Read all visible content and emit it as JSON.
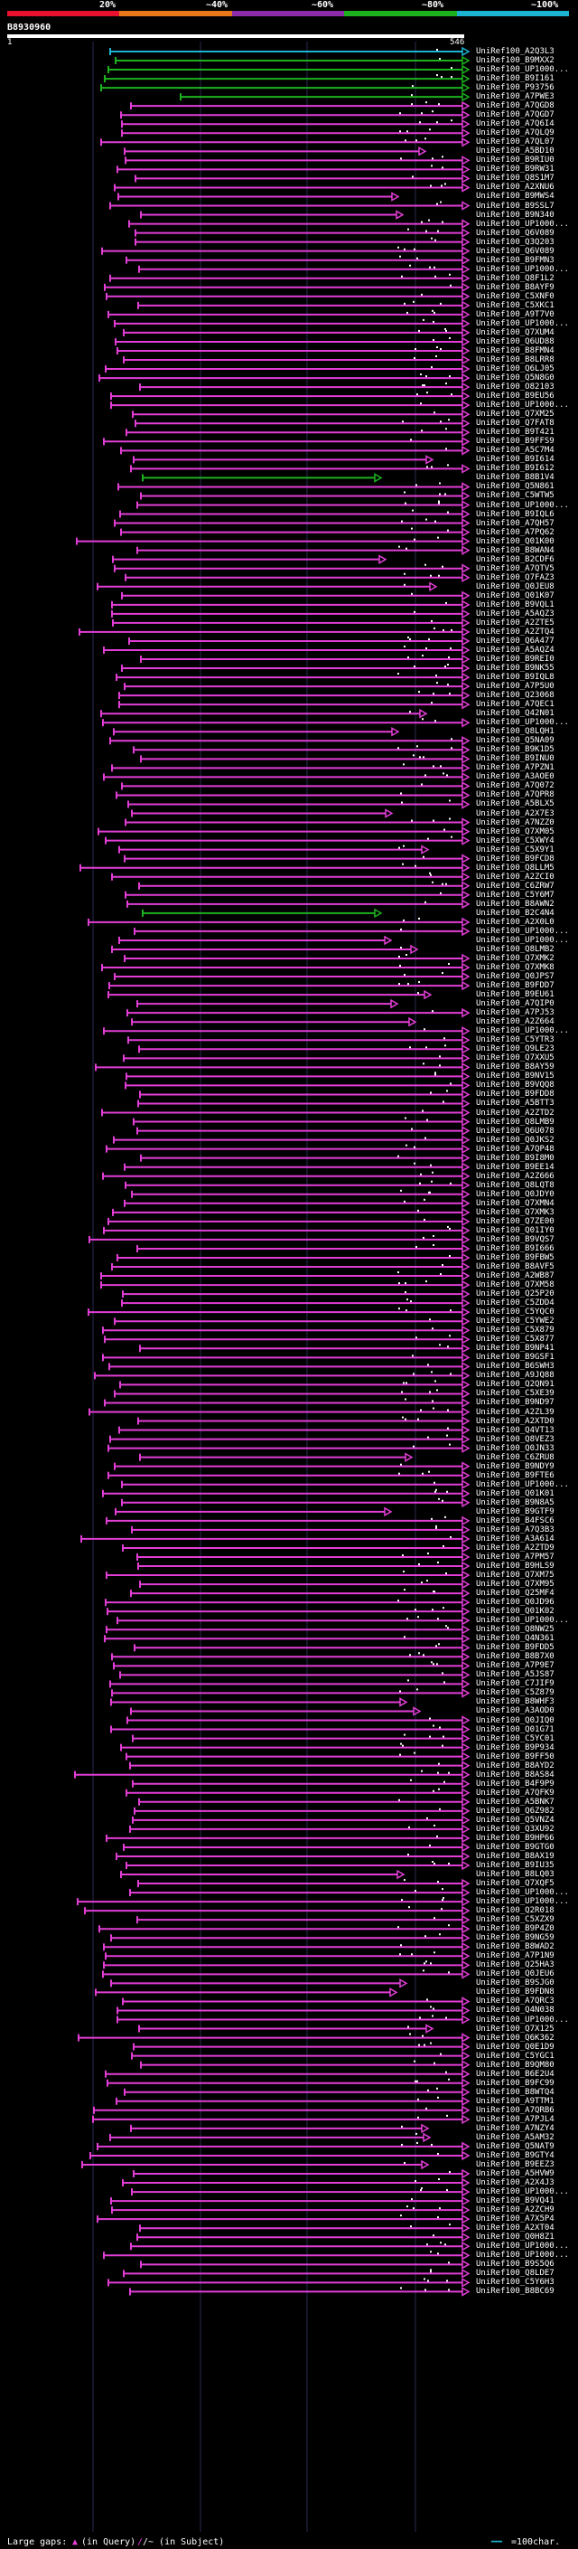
{
  "scale": {
    "labels": [
      "20%",
      "~40%",
      "~60%",
      "~80%",
      "~100%"
    ],
    "colors": [
      "#e8112d",
      "#e8791a",
      "#8d2ca8",
      "#1db11f",
      "#1cb4d0"
    ]
  },
  "query": {
    "id": "B8930960",
    "start": "1",
    "end": "546"
  },
  "hits": [
    "UniRef100_A2Q3L3",
    "UniRef100_B9MXX2",
    "UniRef100_UP1000...",
    "UniRef100_B9I161",
    "UniRef100_P93756",
    "UniRef100_A7PWE3",
    "UniRef100_A7QGD8",
    "UniRef100_A7QGD7",
    "UniRef100_A7Q6I4",
    "UniRef100_A7QLQ9",
    "UniRef100_A7QL07",
    "UniRef100_A5BD10",
    "UniRef100_B9RIU0",
    "UniRef100_B9RW31",
    "UniRef100_Q8S1M7",
    "UniRef100_A2XNU6",
    "UniRef100_B9MWS4",
    "UniRef100_B9SSL7",
    "UniRef100_B9N340",
    "UniRef100_UP1000...",
    "UniRef100_Q6V089",
    "UniRef100_Q3Q203",
    "UniRef100_Q6V089",
    "UniRef100_B9FMN3",
    "UniRef100_UP1000...",
    "UniRef100_Q8F1L2",
    "UniRef100_B8AYF9",
    "UniRef100_C5XNF0",
    "UniRef100_C5XKC1",
    "UniRef100_A9T7V0",
    "UniRef100_UP1000...",
    "UniRef100_Q7XUM4",
    "UniRef100_Q6UD88",
    "UniRef100_B8FMN4",
    "UniRef100_B8LRR8",
    "UniRef100_Q6LJ05",
    "UniRef100_Q5N8G0",
    "UniRef100_O82103",
    "UniRef100_B9EU56",
    "UniRef100_UP1000...",
    "UniRef100_Q7XM25",
    "UniRef100_Q7FAT8",
    "UniRef100_B9T421",
    "UniRef100_B9FFS9",
    "UniRef100_A5C7M4",
    "UniRef100_B9I614",
    "UniRef100_B9I612",
    "UniRef100_B8B1V4",
    "UniRef100_Q5N861",
    "UniRef100_C5WTW5",
    "UniRef100_UP1000...",
    "UniRef100_B9IQL6",
    "UniRef100_A7QH57",
    "UniRef100_A7PQ62",
    "UniRef100_Q01K00",
    "UniRef100_B8WAN4",
    "UniRef100_B2CDF6",
    "UniRef100_A7QTV5",
    "UniRef100_Q7FAZ3",
    "UniRef100_Q0JEU8",
    "UniRef100_Q01K07",
    "UniRef100_B9VQL1",
    "UniRef100_A5AQZ3",
    "UniRef100_A2ZTE5",
    "UniRef100_A2ZTQ4",
    "UniRef100_Q6A477",
    "UniRef100_A5AQZ4",
    "UniRef100_B9REI0",
    "UniRef100_B9NK55",
    "UniRef100_B9IQL8",
    "UniRef100_A7P5U0",
    "UniRef100_Q23068",
    "UniRef100_A7QEC1",
    "UniRef100_Q42N01",
    "UniRef100_UP1000...",
    "UniRef100_Q8LQH1",
    "UniRef100_Q5NA09",
    "UniRef100_B9K1D5",
    "UniRef100_B9INU0",
    "UniRef100_A7PZN1",
    "UniRef100_A3AOE0",
    "UniRef100_A7Q072",
    "UniRef100_A7QPR8",
    "UniRef100_A5BLX5",
    "UniRef100_A2X7E3",
    "UniRef100_A7NZZ0",
    "UniRef100_Q7XM05",
    "UniRef100_C5XWY4",
    "UniRef100_C5X9Y1",
    "UniRef100_B9FCD8",
    "UniRef100_Q8LLM5",
    "UniRef100_A2ZCI0",
    "UniRef100_C6ZRW7",
    "UniRef100_C5Y6M7",
    "UniRef100_B8AWN2",
    "UniRef100_B2C4N4",
    "UniRef100_A2X0L0",
    "UniRef100_UP1000...",
    "UniRef100_UP1000...",
    "UniRef100_Q8LMB2",
    "UniRef100_Q7XMK2",
    "UniRef100_Q7XMK8",
    "UniRef100_Q0JPS7",
    "UniRef100_B9FDD7",
    "UniRef100_B9EU61",
    "UniRef100_A7QIP0",
    "UniRef100_A7PJ53",
    "UniRef100_A2Z664",
    "UniRef100_UP1000...",
    "UniRef100_C5YTR3",
    "UniRef100_Q9LE23",
    "UniRef100_Q7XXU5",
    "UniRef100_B8AY59",
    "UniRef100_B9NV15",
    "UniRef100_B9VQQ8",
    "UniRef100_B9FDD8",
    "UniRef100_A5BTT3",
    "UniRef100_A2ZTD2",
    "UniRef100_Q8LMB9",
    "UniRef100_Q6U078",
    "UniRef100_Q0JKS2",
    "UniRef100_A7QP48",
    "UniRef100_B9I8M0",
    "UniRef100_B9EE14",
    "UniRef100_A2Z666",
    "UniRef100_Q8LQT8",
    "UniRef100_Q0JDY0",
    "UniRef100_Q7XMN4",
    "UniRef100_Q7XMK3",
    "UniRef100_Q7ZE00",
    "UniRef100_Q01IY0",
    "UniRef100_B9VQS7",
    "UniRef100_B9I666",
    "UniRef100_B9FBW5",
    "UniRef100_B8AVF5",
    "UniRef100_A2WB87",
    "UniRef100_Q7XM58",
    "UniRef100_Q25P20",
    "UniRef100_C5ZDD4",
    "UniRef100_C5YQC0",
    "UniRef100_C5YWE2",
    "UniRef100_C5X879",
    "UniRef100_C5X877",
    "UniRef100_B9NP41",
    "UniRef100_B9GSF1",
    "UniRef100_B6SWH3",
    "UniRef100_A9JQ88",
    "UniRef100_Q2QN91",
    "UniRef100_C5XE39",
    "UniRef100_B9ND97",
    "UniRef100_A2ZL39",
    "UniRef100_A2XTD0",
    "UniRef100_Q4VT13",
    "UniRef100_Q8VEZ3",
    "UniRef100_Q0JN33",
    "UniRef100_C6ZRU8",
    "UniRef100_B9NDY9",
    "UniRef100_B9FTE6",
    "UniRef100_UP1000...",
    "UniRef100_Q01K01",
    "UniRef100_B9N8A5",
    "UniRef100_B9GTF9",
    "UniRef100_B4FSC6",
    "UniRef100_A7Q3B3",
    "UniRef100_A3A614",
    "UniRef100_A2ZTD9",
    "UniRef100_A7PM57",
    "UniRef100_B9HLS9",
    "UniRef100_Q7XM75",
    "UniRef100_Q7XM95",
    "UniRef100_Q25MF4",
    "UniRef100_Q0JD96",
    "UniRef100_Q01K02",
    "UniRef100_UP1000...",
    "UniRef100_Q8NW25",
    "UniRef100_Q4N361",
    "UniRef100_B9FDD5",
    "UniRef100_B8B7X0",
    "UniRef100_A7P9E7",
    "UniRef100_A5JS87",
    "UniRef100_C7JIF9",
    "UniRef100_C5Z879",
    "UniRef100_B8WHF3",
    "UniRef100_A3AOD0",
    "UniRef100_Q0JIQ0",
    "UniRef100_Q01G71",
    "UniRef100_C5YC01",
    "UniRef100_B9P934",
    "UniRef100_B9FF50",
    "UniRef100_B8AYD2",
    "UniRef100_B8AS84",
    "UniRef100_B4F9P9",
    "UniRef100_A7QFK9",
    "UniRef100_A5BNK7",
    "UniRef100_Q6Z982",
    "UniRef100_Q5VNZ4",
    "UniRef100_Q3XU92",
    "UniRef100_B9HP66",
    "UniRef100_B9GTG0",
    "UniRef100_B8AX19",
    "UniRef100_B9IU35",
    "UniRef100_B8LQ03",
    "UniRef100_Q7XQF5",
    "UniRef100_UP1000...",
    "UniRef100_UP1000...",
    "UniRef100_Q2R018",
    "UniRef100_C5XZX9",
    "UniRef100_B9P4Z0",
    "UniRef100_B9NG59",
    "UniRef100_B8WAD2",
    "UniRef100_A7P1N9",
    "UniRef100_Q25HA3",
    "UniRef100_Q0JEU6",
    "UniRef100_B9SJG0",
    "UniRef100_B9FDN8",
    "UniRef100_A7QRC3",
    "UniRef100_Q4N038",
    "UniRef100_UP1000...",
    "UniRef100_Q7X125",
    "UniRef100_Q6K362",
    "UniRef100_Q0E1D9",
    "UniRef100_C5YGC1",
    "UniRef100_B9QM80",
    "UniRef100_B6E2U4",
    "UniRef100_B9FC99",
    "UniRef100_B8WTQ4",
    "UniRef100_A9TTM1",
    "UniRef100_A7QRB6",
    "UniRef100_A7PJL4",
    "UniRef100_A7NZY4",
    "UniRef100_A5AM32",
    "UniRef100_Q5NAT9",
    "UniRef100_B9GTY4",
    "UniRef100_B9EEZ3",
    "UniRef100_A5HVW9",
    "UniRef100_A2X4J3",
    "UniRef100_UP1000...",
    "UniRef100_B9VQ41",
    "UniRef100_A2ZCH9",
    "UniRef100_A7X5P4",
    "UniRef100_A2XT04",
    "UniRef100_Q0H8Z1",
    "UniRef100_UP1000...",
    "UniRef100_UP1000...",
    "UniRef100_B9S5Q6",
    "UniRef100_Q8LDE7",
    "UniRef100_C5Y6H3",
    "UniRef100_B8BC69"
  ],
  "legend": {
    "gaps_label": "Large gaps:",
    "query_gap": "(in Query)",
    "subject_gap": "/~ (in Subject)",
    "scale_label": "=100char."
  }
}
